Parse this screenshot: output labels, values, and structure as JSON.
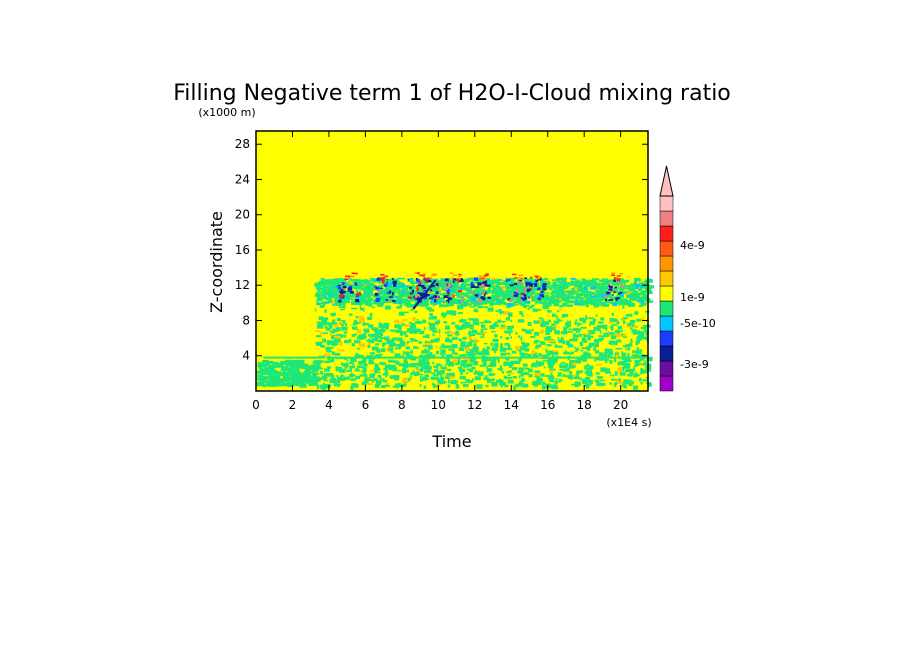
{
  "chart_data": {
    "type": "heatmap",
    "title": "Filling Negative term 1 of H2O-I-Cloud mixing ratio",
    "xlabel": "Time",
    "ylabel": "Z-coordinate",
    "x_unit": "(x1E4 s)",
    "y_unit": "(x1000 m)",
    "xlim": [
      0,
      21.5
    ],
    "ylim": [
      0,
      29.5
    ],
    "x_ticks": [
      "0",
      "2",
      "4",
      "6",
      "8",
      "10",
      "12",
      "14",
      "16",
      "18",
      "20"
    ],
    "y_ticks": [
      "4",
      "8",
      "12",
      "16",
      "20",
      "24",
      "28"
    ],
    "colorbar": {
      "labels": [
        "4e-9",
        "1e-9",
        "-5e-10",
        "-3e-9"
      ],
      "colors_bottom_to_top": [
        "#a000c8",
        "#6a0fa0",
        "#0a1e96",
        "#1e3cff",
        "#00c8ff",
        "#1ee678",
        "#ffff00",
        "#ffc800",
        "#ff9600",
        "#ff5a14",
        "#ff1e1e",
        "#f08080",
        "#ffc0c0"
      ],
      "extend_top": true
    },
    "background_color": "#ffff00",
    "features": [
      {
        "name": "cloud band",
        "color": "#1ee678",
        "x_range": [
          3.2,
          21.5
        ],
        "z_range": [
          10,
          12.5
        ]
      },
      {
        "name": "mid-level patches",
        "color": "#1ee678",
        "x_range": [
          3.2,
          21.5
        ],
        "z_range": [
          0.5,
          10
        ]
      },
      {
        "name": "low-level layer",
        "color": "#1ee678",
        "x_range": [
          0,
          3.2
        ],
        "z_range": [
          0.5,
          3.5
        ]
      },
      {
        "name": "negative anomalies",
        "color": "#0a1e96",
        "x_range": [
          4.5,
          20
        ],
        "z_range": [
          9.5,
          13
        ]
      },
      {
        "name": "positive anomalies",
        "color": "#ff1e1e",
        "x_range": [
          4.5,
          14
        ],
        "z_range": [
          11.5,
          13.5
        ]
      }
    ]
  }
}
